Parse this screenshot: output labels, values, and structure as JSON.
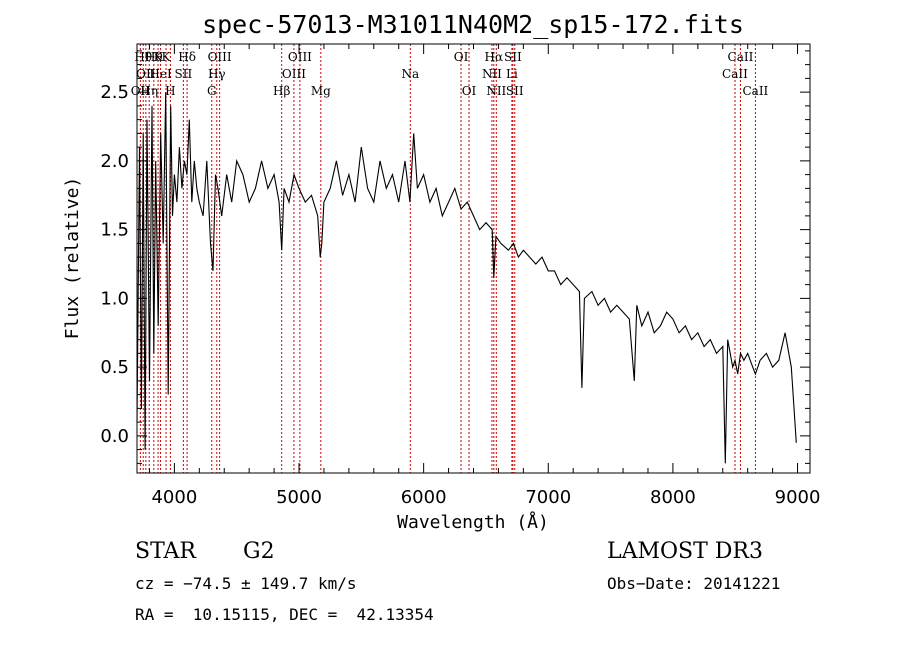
{
  "chart_data": {
    "type": "line",
    "title": "spec-57013-M31011N40M2_sp15-172.fits",
    "xlabel": "Wavelength (Å)",
    "ylabel": "Flux (relative)",
    "xlim": [
      3700,
      9100
    ],
    "ylim": [
      -0.27,
      2.85
    ],
    "xticks": [
      4000,
      5000,
      6000,
      7000,
      8000,
      9000
    ],
    "yticks": [
      0.0,
      0.5,
      1.0,
      1.5,
      2.0,
      2.5
    ],
    "ytick_labels": [
      "0.0",
      "0.5",
      "1.0",
      "1.5",
      "2.0",
      "2.5"
    ],
    "grid": false,
    "line_color": "#000000",
    "marker_color": "#cc0000",
    "series": [
      {
        "x": [
          3700,
          3720,
          3735,
          3750,
          3765,
          3780,
          3800,
          3820,
          3835,
          3850,
          3870,
          3890,
          3910,
          3930,
          3950,
          3970,
          3985,
          4000,
          4020,
          4040,
          4060,
          4080,
          4100,
          4120,
          4140,
          4160,
          4180,
          4200,
          4230,
          4260,
          4290,
          4310,
          4330,
          4350,
          4380,
          4420,
          4460,
          4500,
          4550,
          4600,
          4650,
          4700,
          4750,
          4800,
          4840,
          4861,
          4880,
          4920,
          4960,
          5000,
          5050,
          5100,
          5150,
          5170,
          5183,
          5200,
          5250,
          5300,
          5350,
          5400,
          5450,
          5500,
          5550,
          5600,
          5650,
          5700,
          5750,
          5800,
          5850,
          5890,
          5920,
          5950,
          6000,
          6050,
          6100,
          6150,
          6200,
          6250,
          6300,
          6350,
          6400,
          6450,
          6500,
          6550,
          6563,
          6580,
          6620,
          6680,
          6720,
          6760,
          6800,
          6850,
          6900,
          6950,
          7000,
          7050,
          7100,
          7150,
          7200,
          7250,
          7270,
          7290,
          7350,
          7400,
          7450,
          7500,
          7550,
          7600,
          7650,
          7690,
          7710,
          7750,
          7800,
          7850,
          7900,
          7950,
          8000,
          8050,
          8100,
          8150,
          8200,
          8250,
          8300,
          8350,
          8400,
          8420,
          8440,
          8480,
          8498,
          8520,
          8542,
          8570,
          8600,
          8640,
          8662,
          8700,
          8750,
          8800,
          8850,
          8900,
          8950,
          8990
        ],
        "y": [
          0.1,
          2.1,
          0.2,
          2.2,
          -0.1,
          2.3,
          0.4,
          2.4,
          0.6,
          2.0,
          0.8,
          2.2,
          1.4,
          2.5,
          0.3,
          2.4,
          1.6,
          1.9,
          1.7,
          2.1,
          1.8,
          2.0,
          1.9,
          2.3,
          1.7,
          2.0,
          1.8,
          1.7,
          1.6,
          2.0,
          1.4,
          1.2,
          1.9,
          1.8,
          1.6,
          1.9,
          1.7,
          2.0,
          1.9,
          1.7,
          1.8,
          2.0,
          1.8,
          1.9,
          1.7,
          1.35,
          1.8,
          1.7,
          1.9,
          1.8,
          1.7,
          1.75,
          1.6,
          1.3,
          1.4,
          1.7,
          1.8,
          2.0,
          1.75,
          1.9,
          1.7,
          2.1,
          1.8,
          1.7,
          2.0,
          1.8,
          1.9,
          1.7,
          2.0,
          1.7,
          2.2,
          1.8,
          1.9,
          1.7,
          1.8,
          1.6,
          1.7,
          1.8,
          1.65,
          1.7,
          1.6,
          1.5,
          1.55,
          1.5,
          1.15,
          1.45,
          1.4,
          1.35,
          1.4,
          1.3,
          1.35,
          1.3,
          1.25,
          1.3,
          1.2,
          1.2,
          1.1,
          1.15,
          1.1,
          1.05,
          0.35,
          1.0,
          1.05,
          0.95,
          1.0,
          0.9,
          0.95,
          0.9,
          0.85,
          0.4,
          0.95,
          0.8,
          0.9,
          0.75,
          0.8,
          0.9,
          0.85,
          0.75,
          0.8,
          0.7,
          0.75,
          0.65,
          0.7,
          0.6,
          0.65,
          -0.2,
          0.7,
          0.5,
          0.55,
          0.45,
          0.6,
          0.55,
          0.6,
          0.5,
          0.45,
          0.55,
          0.6,
          0.5,
          0.55,
          0.75,
          0.5,
          -0.05
        ]
      }
    ],
    "line_markers": [
      {
        "x": 3727,
        "label": "OII",
        "row": 2
      },
      {
        "x": 3750,
        "label": "Hθ",
        "row": 0
      },
      {
        "x": 3771,
        "label": "OII",
        "row": 1
      },
      {
        "x": 3798,
        "label": "Hη",
        "row": 2
      },
      {
        "x": 3835,
        "label": "Hθ",
        "row": 0
      },
      {
        "x": 3869,
        "label": "K",
        "row": 0
      },
      {
        "x": 3889,
        "label": "HeI",
        "row": 1
      },
      {
        "x": 3933,
        "label": "K",
        "row": 0
      },
      {
        "x": 3968,
        "label": "H",
        "row": 2
      },
      {
        "x": 4072,
        "label": "SII",
        "row": 1
      },
      {
        "x": 4102,
        "label": "Hδ",
        "row": 0
      },
      {
        "x": 4300,
        "label": "G",
        "row": 2
      },
      {
        "x": 4340,
        "label": "Hγ",
        "row": 1
      },
      {
        "x": 4363,
        "label": "OIII",
        "row": 0
      },
      {
        "x": 4861,
        "label": "Hβ",
        "row": 2
      },
      {
        "x": 4959,
        "label": "OIII",
        "row": 1
      },
      {
        "x": 5007,
        "label": "OIII",
        "row": 0
      },
      {
        "x": 5175,
        "label": "Mg",
        "row": 2
      },
      {
        "x": 5893,
        "label": "Na",
        "row": 1
      },
      {
        "x": 6300,
        "label": "OI",
        "row": 0
      },
      {
        "x": 6364,
        "label": "OI",
        "row": 2
      },
      {
        "x": 6548,
        "label": "NII",
        "row": 1
      },
      {
        "x": 6563,
        "label": "Hα",
        "row": 0
      },
      {
        "x": 6583,
        "label": "NII",
        "row": 2
      },
      {
        "x": 6708,
        "label": "Li",
        "row": 1
      },
      {
        "x": 6716,
        "label": "SII",
        "row": 0
      },
      {
        "x": 6731,
        "label": "SII",
        "row": 2
      },
      {
        "x": 8498,
        "label": "CaII",
        "row": 1
      },
      {
        "x": 8542,
        "label": "CaII",
        "row": 0
      },
      {
        "x": 8662,
        "label": "CaII",
        "row": 2
      }
    ]
  },
  "info": {
    "class": "STAR",
    "subclass": "G2",
    "survey": "LAMOST DR3",
    "cz": "cz = −74.5 ± 149.7 km/s",
    "obs_date": "Obs−Date: 20141221",
    "radec": "RA =  10.15115, DEC =  42.13354"
  }
}
